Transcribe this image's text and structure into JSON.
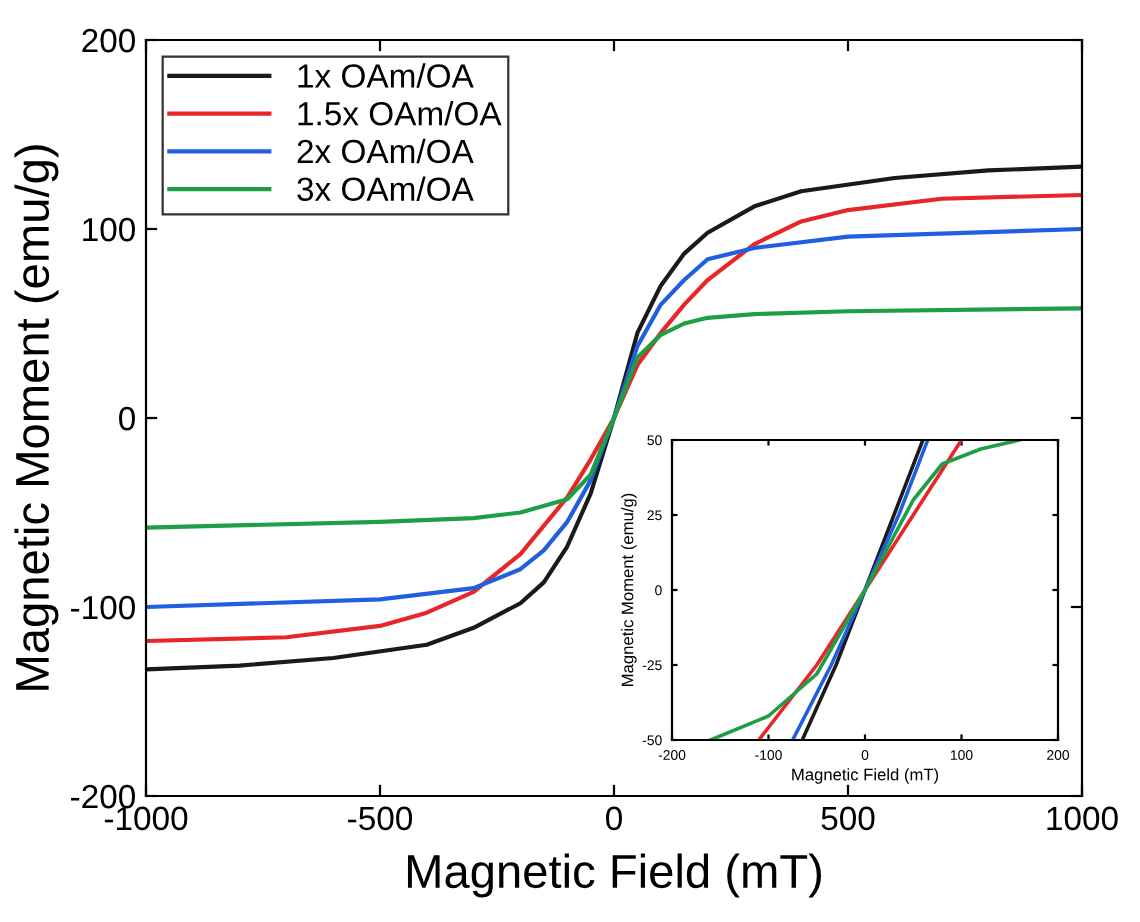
{
  "chart_data": [
    {
      "type": "line",
      "xlabel": "Magnetic Field (mT)",
      "ylabel": "Magnetic Moment (emu/g)",
      "xlim": [
        -1000,
        1000
      ],
      "ylim": [
        -200,
        200
      ],
      "xticks": [
        -1000,
        -500,
        0,
        500,
        1000
      ],
      "yticks": [
        -200,
        -100,
        0,
        100,
        200
      ],
      "legend": "top left",
      "grid": false,
      "series": [
        {
          "name": "1x OAm/OA",
          "color": "#1a1a1a",
          "x": [
            -1000,
            -800,
            -600,
            -400,
            -300,
            -200,
            -150,
            -100,
            -50,
            0,
            50,
            100,
            150,
            200,
            300,
            400,
            600,
            800,
            1000
          ],
          "values": [
            -133,
            -131,
            -127,
            -120,
            -111,
            -98,
            -87,
            -68,
            -40,
            0,
            45,
            70,
            87,
            98,
            112,
            120,
            127,
            131,
            133
          ]
        },
        {
          "name": "1.5x OAm/OA",
          "color": "#e8262a",
          "x": [
            -1000,
            -700,
            -500,
            -400,
            -300,
            -200,
            -100,
            -50,
            0,
            50,
            100,
            150,
            200,
            300,
            400,
            500,
            700,
            1000
          ],
          "values": [
            -118,
            -116,
            -110,
            -103,
            -92,
            -72,
            -42,
            -22,
            0,
            28,
            45,
            60,
            73,
            92,
            104,
            110,
            116,
            118
          ]
        },
        {
          "name": "2x OAm/OA",
          "color": "#1f5fe0",
          "x": [
            -1000,
            -500,
            -300,
            -200,
            -150,
            -100,
            -50,
            0,
            50,
            100,
            150,
            200,
            300,
            500,
            1000
          ],
          "values": [
            -100,
            -96,
            -90,
            -80,
            -70,
            -55,
            -33,
            0,
            38,
            60,
            73,
            84,
            90,
            96,
            100
          ]
        },
        {
          "name": "3x OAm/OA",
          "color": "#1e9e45",
          "x": [
            -1000,
            -500,
            -300,
            -200,
            -100,
            -50,
            0,
            50,
            100,
            150,
            200,
            300,
            500,
            1000
          ],
          "values": [
            -58,
            -55,
            -53,
            -50,
            -43,
            -30,
            0,
            32,
            44,
            50,
            53,
            55,
            56.5,
            58
          ]
        }
      ]
    },
    {
      "type": "line",
      "xlabel": "Magnetic Field (mT)",
      "ylabel": "Magnetic Moment (emu/g)",
      "xlim": [
        -200,
        200
      ],
      "ylim": [
        -50,
        50
      ],
      "xticks": [
        -200,
        -100,
        0,
        100,
        200
      ],
      "yticks": [
        -50,
        -25,
        0,
        25,
        50
      ],
      "grid": false,
      "series": [
        {
          "color": "#1a1a1a",
          "x": [
            -65,
            -30,
            0,
            30,
            60
          ],
          "values": [
            -50,
            -25,
            0,
            25,
            50
          ]
        },
        {
          "color": "#e8262a",
          "x": [
            -110,
            -50,
            0,
            50,
            100
          ],
          "values": [
            -50,
            -25,
            0,
            25,
            50
          ]
        },
        {
          "color": "#1f5fe0",
          "x": [
            -75,
            -35,
            0,
            35,
            65
          ],
          "values": [
            -50,
            -25,
            0,
            25,
            50
          ]
        },
        {
          "color": "#1e9e45",
          "x": [
            -160,
            -100,
            -50,
            0,
            50,
            80,
            120,
            160
          ],
          "values": [
            -50,
            -42,
            -28,
            0,
            30,
            42,
            47,
            50
          ]
        }
      ]
    }
  ]
}
